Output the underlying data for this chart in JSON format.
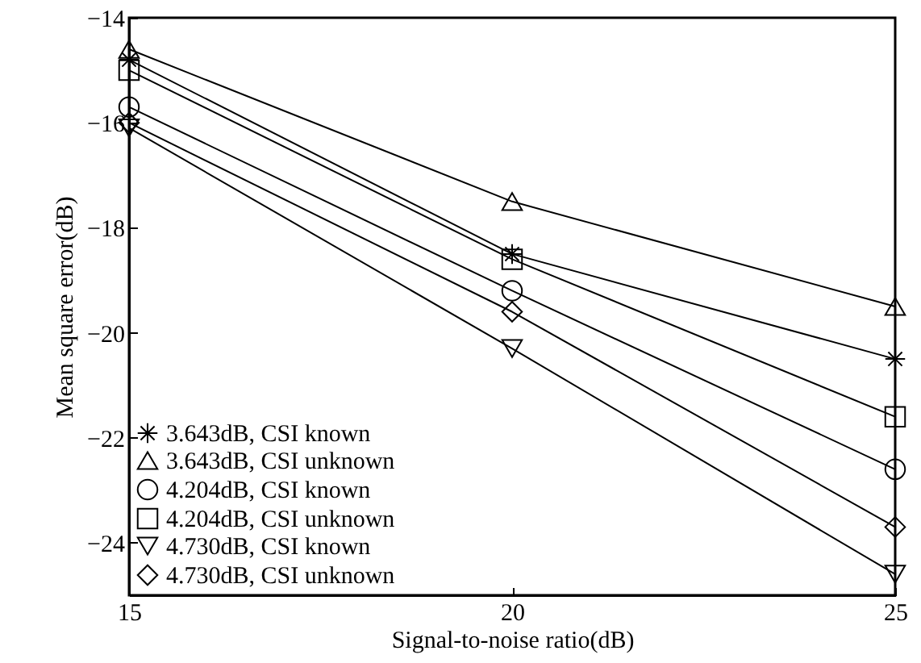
{
  "chart_data": {
    "type": "line",
    "xlabel": "Signal-to-noise ratio(dB)",
    "ylabel": "Mean square error(dB)",
    "x": [
      15,
      20,
      25
    ],
    "xlim": [
      15,
      25
    ],
    "xticks": [
      15,
      20,
      25
    ],
    "ylim": [
      -25,
      -14
    ],
    "yticks": [
      -24,
      -22,
      -20,
      -18,
      -16,
      -14
    ],
    "legend": "bottom left",
    "grid": false,
    "line_style": "solid",
    "series": [
      {
        "name": "3.643dB, CSI known",
        "color": "#000000",
        "marker": "cross",
        "values": [
          -14.8,
          -18.5,
          -20.5
        ]
      },
      {
        "name": "3.643dB, CSI unknown",
        "color": "#000000",
        "marker": "triangle",
        "values": [
          -14.6,
          -17.5,
          -19.5
        ]
      },
      {
        "name": "4.204dB, CSI known",
        "color": "#000000",
        "marker": "circle",
        "values": [
          -15.7,
          -19.2,
          -22.6
        ]
      },
      {
        "name": "4.204dB, CSI unknown",
        "color": "#000000",
        "marker": "square",
        "values": [
          -15.0,
          -18.6,
          -21.6
        ]
      },
      {
        "name": "4.730dB, CSI known",
        "color": "#000000",
        "marker": "triangle-down",
        "values": [
          -16.1,
          -20.3,
          -24.6
        ]
      },
      {
        "name": "4.730dB, CSI unknown",
        "color": "#000000",
        "marker": "diamond",
        "values": [
          -16.0,
          -19.6,
          -23.7
        ]
      }
    ]
  }
}
